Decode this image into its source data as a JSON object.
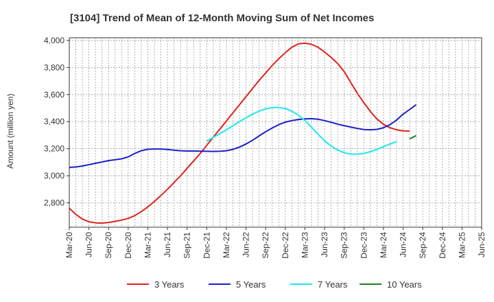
{
  "chart_data": {
    "type": "line",
    "title": "[3104]  Trend of Mean of 12-Month Moving Sum of Net Incomes",
    "xlabel": "",
    "ylabel": "Amount (million yen)",
    "ylim": [
      2620,
      4020
    ],
    "yticks": [
      2800,
      3000,
      3200,
      3400,
      3600,
      3800,
      4000
    ],
    "ytick_labels": [
      "2,800",
      "3,000",
      "3,200",
      "3,400",
      "3,600",
      "3,800",
      "4,000"
    ],
    "xticks": [
      "Mar-20",
      "Jun-20",
      "Sep-20",
      "Dec-20",
      "Mar-21",
      "Jun-21",
      "Sep-21",
      "Dec-21",
      "Mar-22",
      "Jun-22",
      "Sep-22",
      "Dec-22",
      "Mar-23",
      "Jun-23",
      "Sep-23",
      "Dec-23",
      "Mar-24",
      "Jun-24",
      "Sep-24",
      "Dec-24",
      "Mar-25",
      "Jun-25"
    ],
    "grid": true,
    "legend_position": "bottom",
    "series": [
      {
        "name": "3 Years",
        "color": "#e0201b",
        "values": [
          [
            0,
            2760
          ],
          [
            1,
            2715
          ],
          [
            2,
            2680
          ],
          [
            3,
            2660
          ],
          [
            4,
            2652
          ],
          [
            5,
            2650
          ],
          [
            6,
            2655
          ],
          [
            7,
            2663
          ],
          [
            8,
            2672
          ],
          [
            9,
            2685
          ],
          [
            10,
            2705
          ],
          [
            11,
            2735
          ],
          [
            12,
            2770
          ],
          [
            13,
            2810
          ],
          [
            14,
            2855
          ],
          [
            15,
            2900
          ],
          [
            16,
            2950
          ],
          [
            17,
            3000
          ],
          [
            18,
            3055
          ],
          [
            19,
            3110
          ],
          [
            20,
            3165
          ],
          [
            21,
            3225
          ],
          [
            22,
            3285
          ],
          [
            23,
            3345
          ],
          [
            24,
            3405
          ],
          [
            25,
            3465
          ],
          [
            26,
            3525
          ],
          [
            27,
            3585
          ],
          [
            28,
            3645
          ],
          [
            29,
            3705
          ],
          [
            30,
            3760
          ],
          [
            31,
            3815
          ],
          [
            32,
            3865
          ],
          [
            33,
            3910
          ],
          [
            34,
            3950
          ],
          [
            35,
            3975
          ],
          [
            36,
            3980
          ],
          [
            37,
            3972
          ],
          [
            38,
            3950
          ],
          [
            39,
            3915
          ],
          [
            40,
            3875
          ],
          [
            41,
            3830
          ],
          [
            42,
            3770
          ],
          [
            43,
            3690
          ],
          [
            44,
            3610
          ],
          [
            45,
            3540
          ],
          [
            46,
            3475
          ],
          [
            47,
            3420
          ],
          [
            48,
            3380
          ],
          [
            49,
            3355
          ],
          [
            50,
            3340
          ],
          [
            51,
            3332
          ],
          [
            52,
            3330
          ]
        ]
      },
      {
        "name": "5 Years",
        "color": "#1a1ecb",
        "values": [
          [
            0,
            3062
          ],
          [
            1,
            3065
          ],
          [
            2,
            3072
          ],
          [
            3,
            3082
          ],
          [
            4,
            3092
          ],
          [
            5,
            3102
          ],
          [
            6,
            3112
          ],
          [
            7,
            3118
          ],
          [
            8,
            3125
          ],
          [
            9,
            3140
          ],
          [
            10,
            3165
          ],
          [
            11,
            3185
          ],
          [
            12,
            3196
          ],
          [
            13,
            3198
          ],
          [
            14,
            3198
          ],
          [
            15,
            3194
          ],
          [
            16,
            3189
          ],
          [
            17,
            3185
          ],
          [
            18,
            3183
          ],
          [
            19,
            3183
          ],
          [
            20,
            3182
          ],
          [
            21,
            3181
          ],
          [
            22,
            3180
          ],
          [
            23,
            3181
          ],
          [
            24,
            3185
          ],
          [
            25,
            3195
          ],
          [
            26,
            3212
          ],
          [
            27,
            3235
          ],
          [
            28,
            3262
          ],
          [
            29,
            3295
          ],
          [
            30,
            3325
          ],
          [
            31,
            3353
          ],
          [
            32,
            3378
          ],
          [
            33,
            3396
          ],
          [
            34,
            3408
          ],
          [
            35,
            3416
          ],
          [
            36,
            3420
          ],
          [
            37,
            3422
          ],
          [
            38,
            3418
          ],
          [
            39,
            3408
          ],
          [
            40,
            3395
          ],
          [
            41,
            3382
          ],
          [
            42,
            3370
          ],
          [
            43,
            3360
          ],
          [
            44,
            3350
          ],
          [
            45,
            3342
          ],
          [
            46,
            3340
          ],
          [
            47,
            3343
          ],
          [
            48,
            3355
          ],
          [
            49,
            3378
          ],
          [
            50,
            3412
          ],
          [
            51,
            3455
          ],
          [
            52,
            3490
          ],
          [
            53,
            3525
          ]
        ]
      },
      {
        "name": "7 Years",
        "color": "#1ee8f0",
        "values": [
          [
            21,
            3255
          ],
          [
            22,
            3283
          ],
          [
            23,
            3311
          ],
          [
            24,
            3340
          ],
          [
            25,
            3370
          ],
          [
            26,
            3400
          ],
          [
            27,
            3428
          ],
          [
            28,
            3455
          ],
          [
            29,
            3478
          ],
          [
            30,
            3495
          ],
          [
            31,
            3503
          ],
          [
            32,
            3505
          ],
          [
            33,
            3497
          ],
          [
            34,
            3478
          ],
          [
            35,
            3448
          ],
          [
            36,
            3408
          ],
          [
            37,
            3360
          ],
          [
            38,
            3307
          ],
          [
            39,
            3258
          ],
          [
            40,
            3220
          ],
          [
            41,
            3190
          ],
          [
            42,
            3170
          ],
          [
            43,
            3160
          ],
          [
            44,
            3160
          ],
          [
            45,
            3165
          ],
          [
            46,
            3178
          ],
          [
            47,
            3195
          ],
          [
            48,
            3215
          ],
          [
            49,
            3235
          ],
          [
            50,
            3252
          ]
        ]
      },
      {
        "name": "10 Years",
        "color": "#1f7d24",
        "values": [
          [
            52,
            3273
          ],
          [
            53,
            3297
          ]
        ]
      }
    ]
  }
}
